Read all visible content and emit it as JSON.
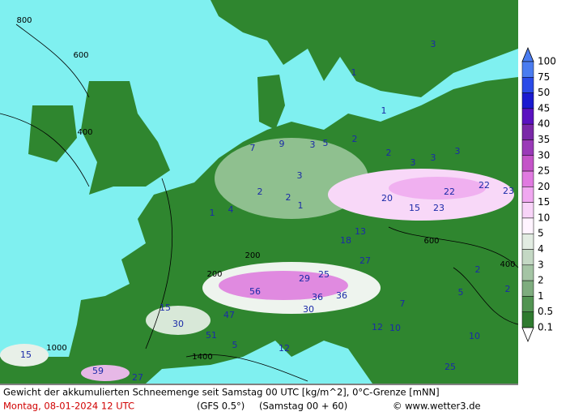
{
  "legend": {
    "labels": [
      100,
      75,
      50,
      45,
      40,
      35,
      30,
      25,
      20,
      15,
      10,
      5,
      4,
      3,
      2,
      1,
      0.5,
      0.1
    ],
    "colors": [
      "#4a7cf0",
      "#2a4ae8",
      "#1a1ad0",
      "#5a12c0",
      "#7a28a8",
      "#9a3ab8",
      "#c454c8",
      "#e07ae0",
      "#f0a8f0",
      "#f8d4f8",
      "#fff4ff",
      "#e2ece2",
      "#c4d8c4",
      "#a4c4a4",
      "#7eac7e",
      "#529452",
      "#2f7a2f"
    ]
  },
  "map_labels": {
    "snow": [
      "1",
      "3",
      "1",
      "7",
      "9",
      "3",
      "5",
      "2",
      "2",
      "3",
      "3",
      "3",
      "3",
      "2",
      "2",
      "1",
      "4",
      "1",
      "20",
      "22",
      "22",
      "23",
      "15",
      "23",
      "18",
      "13",
      "27",
      "25",
      "29",
      "56",
      "36",
      "36",
      "30",
      "47",
      "51",
      "15",
      "30",
      "12",
      "10",
      "12",
      "5",
      "15",
      "59",
      "27",
      "2",
      "5",
      "2",
      "7",
      "10",
      "25"
    ],
    "height": [
      "800",
      "600",
      "400",
      "200",
      "200",
      "1000",
      "1400",
      "600",
      "400"
    ]
  },
  "caption": {
    "title": "Gewicht der akkumulierten Schneemenge seit Samstag 00 UTC [kg/m^2], 0°C-Grenze [mNN]",
    "date": "Montag, 08-01-2024  12 UTC",
    "model": "(GFS 0.5°)",
    "run": "(Samstag 00 + 60)",
    "credit": "© www.wetter3.de"
  }
}
